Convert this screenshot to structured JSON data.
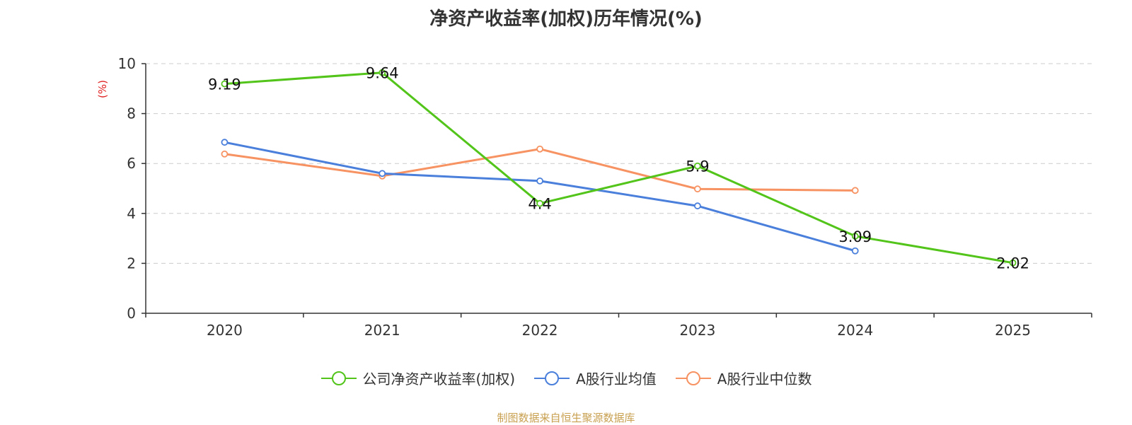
{
  "chart_data": {
    "type": "line",
    "title": "净资产收益率(加权)历年情况(%)",
    "ylabel": "(%)",
    "xlabel": "",
    "categories": [
      "2020",
      "2021",
      "2022",
      "2023",
      "2024",
      "2025"
    ],
    "ylim": [
      0,
      10
    ],
    "yticks": [
      0,
      2,
      4,
      6,
      8,
      10
    ],
    "grid": true,
    "legend_position": "bottom",
    "series": [
      {
        "name": "公司净资产收益率(加权)",
        "color": "#52c41a",
        "values": [
          9.19,
          9.64,
          4.4,
          5.9,
          3.09,
          2.02
        ],
        "labels": [
          "9.19",
          "9.64",
          "4.4",
          "5.9",
          "3.09",
          "2.02"
        ]
      },
      {
        "name": "A股行业均值",
        "color": "#4a7fdb",
        "values": [
          6.85,
          5.6,
          5.3,
          4.3,
          2.5,
          null
        ]
      },
      {
        "name": "A股行业中位数",
        "color": "#f79262",
        "values": [
          6.38,
          5.5,
          6.58,
          4.98,
          4.92,
          null
        ]
      }
    ]
  },
  "footer": {
    "source": "制图数据来自恒生聚源数据库"
  },
  "colors": {
    "axis": "#333333",
    "grid": "#cccccc",
    "ylabel": "#e02020",
    "source": "#c8a050"
  }
}
